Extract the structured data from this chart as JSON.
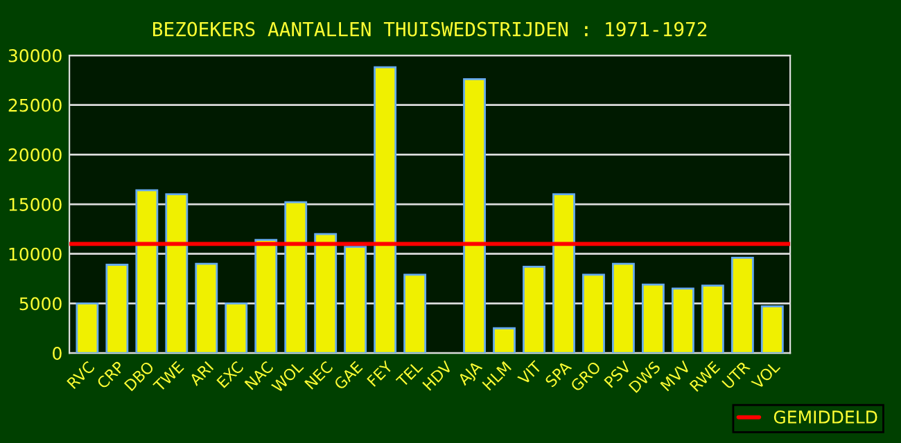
{
  "chart_data": {
    "type": "bar",
    "title": "BEZOEKERS AANTALLEN THUISWEDSTRIJDEN : 1971-1972",
    "categories": [
      "RVC",
      "CRP",
      "DBO",
      "TWE",
      "ARI",
      "EXC",
      "NAC",
      "WOL",
      "NEC",
      "GAE",
      "FEY",
      "TEL",
      "HDV",
      "AJA",
      "HLM",
      "VIT",
      "SPA",
      "GRO",
      "PSV",
      "DWS",
      "MVV",
      "RWE",
      "UTR",
      "VOL"
    ],
    "values": [
      5000,
      8900,
      16400,
      16000,
      9000,
      5000,
      11400,
      15200,
      12000,
      10700,
      28800,
      7900,
      0,
      27600,
      2500,
      8700,
      16000,
      7900,
      9000,
      6900,
      6500,
      6800,
      9600,
      4700
    ],
    "color": "#f0f000",
    "ylim": [
      0,
      30000
    ],
    "yticks": [
      0,
      5000,
      10000,
      15000,
      20000,
      25000,
      30000
    ],
    "grid": "y",
    "ref_lines": [
      {
        "axis": "y",
        "value": 11000,
        "label": "GEMIDDELD",
        "color": "#ff0000"
      }
    ],
    "legend": "bottom right"
  }
}
